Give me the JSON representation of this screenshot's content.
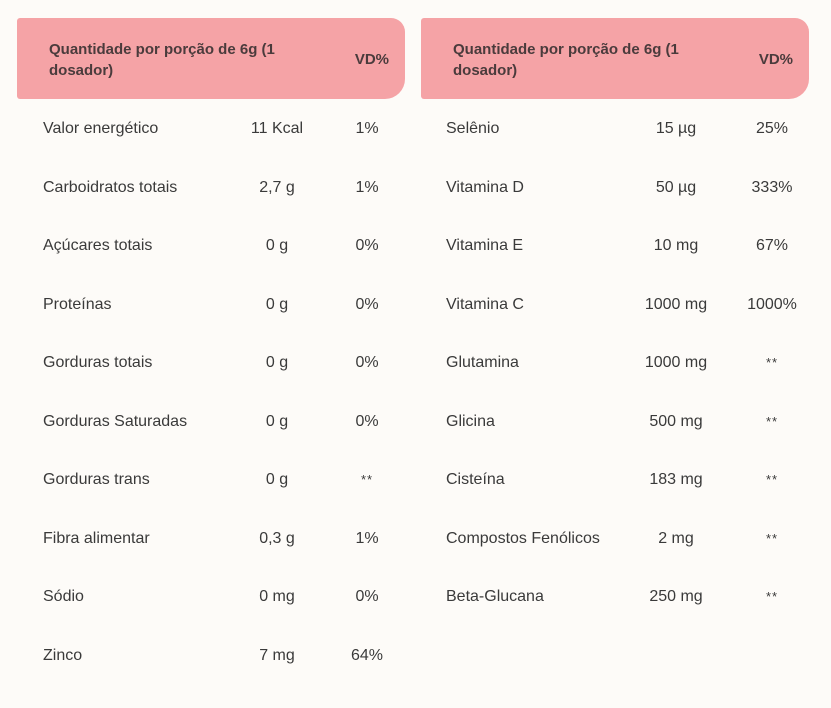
{
  "left_table": {
    "header_quantity": "Quantidade por porção de 6g (1 dosador)",
    "header_vd": "VD%",
    "rows": [
      {
        "name": "Valor energético",
        "amount": "11 Kcal",
        "vd": "1%"
      },
      {
        "name": "Carboidratos totais",
        "amount": "2,7 g",
        "vd": "1%"
      },
      {
        "name": "Açúcares totais",
        "amount": "0 g",
        "vd": "0%"
      },
      {
        "name": "Proteínas",
        "amount": "0 g",
        "vd": "0%"
      },
      {
        "name": "Gorduras totais",
        "amount": "0 g",
        "vd": "0%"
      },
      {
        "name": "Gorduras Saturadas",
        "amount": "0 g",
        "vd": "0%"
      },
      {
        "name": "Gorduras trans",
        "amount": "0 g",
        "vd": "**"
      },
      {
        "name": "Fibra alimentar",
        "amount": "0,3 g",
        "vd": "1%"
      },
      {
        "name": "Sódio",
        "amount": "0 mg",
        "vd": "0%"
      },
      {
        "name": "Zinco",
        "amount": "7 mg",
        "vd": "64%"
      }
    ]
  },
  "right_table": {
    "header_quantity": "Quantidade por porção de 6g (1 dosador)",
    "header_vd": "VD%",
    "rows": [
      {
        "name": "Selênio",
        "amount": "15 µg",
        "vd": "25%"
      },
      {
        "name": "Vitamina D",
        "amount": "50 µg",
        "vd": "333%"
      },
      {
        "name": "Vitamina E",
        "amount": "10 mg",
        "vd": "67%"
      },
      {
        "name": "Vitamina C",
        "amount": "1000 mg",
        "vd": "1000%"
      },
      {
        "name": "Glutamina",
        "amount": "1000 mg",
        "vd": "**"
      },
      {
        "name": "Glicina",
        "amount": "500 mg",
        "vd": "**"
      },
      {
        "name": "Cisteína",
        "amount": "183 mg",
        "vd": "**"
      },
      {
        "name": "Compostos Fenólicos",
        "amount": "2 mg",
        "vd": "**"
      },
      {
        "name": "Beta-Glucana",
        "amount": "250 mg",
        "vd": "**"
      }
    ]
  },
  "colors": {
    "header_background": "#f5a3a6",
    "page_background": "#fdfbf8",
    "text": "#3a3a3a"
  }
}
